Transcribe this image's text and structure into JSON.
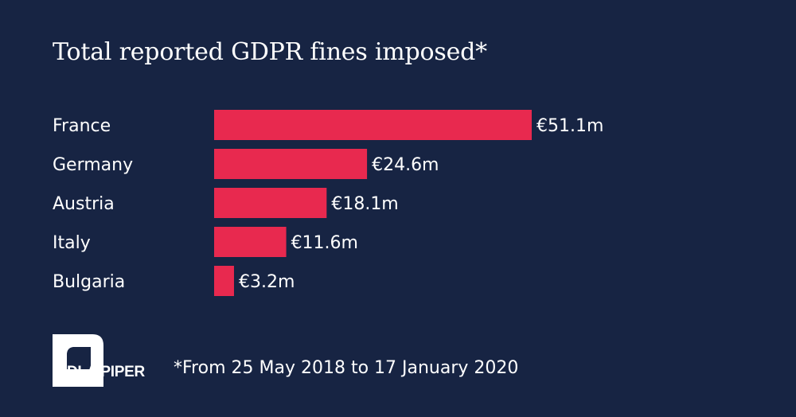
{
  "chart_data": {
    "type": "bar",
    "orientation": "horizontal",
    "title": "Total reported GDPR fines imposed*",
    "categories": [
      "France",
      "Germany",
      "Austria",
      "Italy",
      "Bulgaria"
    ],
    "values": [
      51.1,
      24.6,
      18.1,
      11.6,
      3.2
    ],
    "value_labels": [
      "€51.1m",
      "€24.6m",
      "€18.1m",
      "€11.6m",
      "€3.2m"
    ],
    "unit": "€ million",
    "xlabel": "",
    "ylabel": "",
    "grid": false,
    "legend": "none",
    "bar_color": "#e8294f"
  },
  "footnote": "*From 25 May 2018 to 17 January 2020",
  "logo": {
    "text": "DLA PIPER"
  },
  "colors": {
    "background": "#172443",
    "bar": "#e8294f",
    "text": "#ffffff"
  }
}
